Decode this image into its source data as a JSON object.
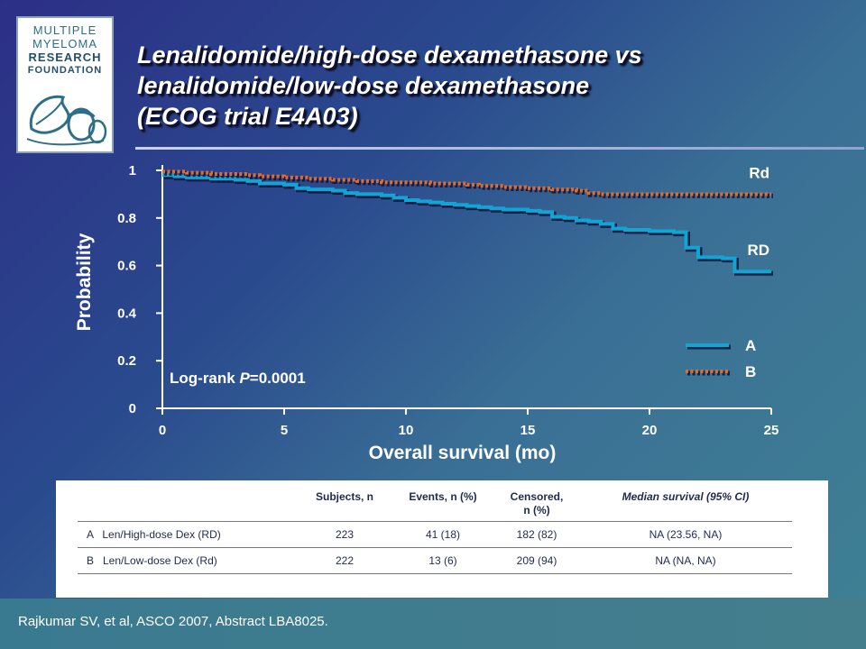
{
  "logo": {
    "line1": "MULTIPLE",
    "line2": "MYELOMA",
    "line3": "RESEARCH",
    "line4": "FOUNDATION"
  },
  "title": {
    "line1": "Lenalidomide/high-dose dexamethasone vs",
    "line2": "lenalidomide/low-dose dexamethasone",
    "line3": "(ECOG trial E4A03)"
  },
  "chart_data": {
    "type": "line",
    "xlabel": "Overall survival (mo)",
    "ylabel": "Probability",
    "xlim": [
      0,
      25
    ],
    "ylim": [
      0,
      1
    ],
    "xticks": [
      "0",
      "5",
      "10",
      "15",
      "20",
      "25"
    ],
    "yticks": [
      "0",
      "0.2",
      "0.4",
      "0.6",
      "0.8",
      "1"
    ],
    "grid": false,
    "annotation": {
      "prefix": "Log-rank ",
      "italic": "P",
      "suffix": "=0.0001"
    },
    "legend": {
      "placement": "lower-right",
      "entries": [
        "A",
        "B"
      ]
    },
    "series": [
      {
        "name": "RD",
        "legend": "A",
        "color": "#13a4d6",
        "style": "solid",
        "x": [
          0,
          0.5,
          1,
          2,
          3,
          3.5,
          4,
          5,
          5.5,
          6,
          7,
          7.5,
          8,
          9,
          9.5,
          10,
          10.5,
          11,
          11.5,
          12,
          12.5,
          13,
          13.5,
          14,
          15,
          15.5,
          16,
          16.5,
          17,
          17.5,
          18,
          18.5,
          19,
          20,
          21,
          21.5,
          22,
          23,
          23.5,
          25
        ],
        "y": [
          0.98,
          0.975,
          0.97,
          0.965,
          0.96,
          0.955,
          0.945,
          0.94,
          0.925,
          0.92,
          0.915,
          0.905,
          0.9,
          0.895,
          0.885,
          0.875,
          0.87,
          0.865,
          0.86,
          0.855,
          0.85,
          0.845,
          0.84,
          0.835,
          0.83,
          0.825,
          0.805,
          0.8,
          0.79,
          0.785,
          0.775,
          0.755,
          0.75,
          0.745,
          0.74,
          0.675,
          0.635,
          0.63,
          0.575,
          0.575
        ]
      },
      {
        "name": "Rd",
        "legend": "B",
        "color": "#e46a2a",
        "style": "dotted",
        "x": [
          0,
          1,
          2,
          3,
          3.5,
          4,
          5,
          6,
          7,
          8,
          9,
          10,
          11,
          12,
          12.5,
          13,
          14,
          15,
          16,
          17,
          17.5,
          18,
          19,
          20,
          21,
          22,
          23,
          25
        ],
        "y": [
          0.995,
          0.99,
          0.985,
          0.985,
          0.98,
          0.975,
          0.97,
          0.965,
          0.96,
          0.955,
          0.95,
          0.95,
          0.945,
          0.945,
          0.94,
          0.935,
          0.93,
          0.925,
          0.92,
          0.915,
          0.905,
          0.9,
          0.9,
          0.9,
          0.9,
          0.9,
          0.9,
          0.9
        ]
      }
    ]
  },
  "table": {
    "headers": [
      "",
      "Subjects, n",
      "Events, n (%)",
      "Censored,\nn (%)",
      "Median survival (95% CI)"
    ],
    "rows": [
      [
        "A   Len/High-dose Dex (RD)",
        "223",
        "41 (18)",
        "182 (82)",
        "NA (23.56, NA)"
      ],
      [
        "B   Len/Low-dose Dex (Rd)",
        "222",
        "13 (6)",
        "209 (94)",
        "NA (NA, NA)"
      ]
    ]
  },
  "footer": {
    "citation": "Rajkumar SV, et al, ASCO 2007, Abstract LBA8025."
  }
}
